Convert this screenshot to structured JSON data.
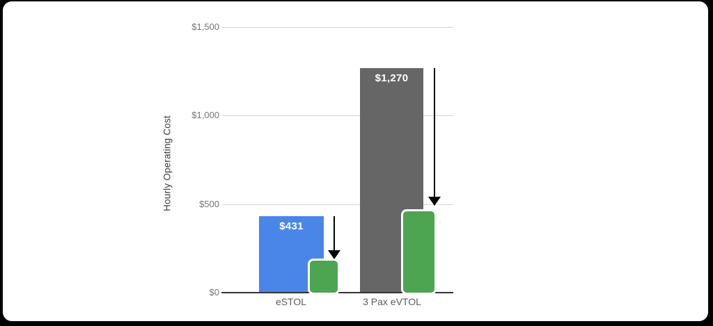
{
  "page": {
    "background_color": "#000000",
    "card_color": "#ffffff"
  },
  "chart_data": {
    "type": "bar",
    "title": "",
    "xlabel": "",
    "ylabel": "Hourly Operating Cost",
    "categories": [
      "eSTOL",
      "3 Pax eVTOL"
    ],
    "series": [
      {
        "name": "baseline-operating-cost",
        "values": [
          431,
          1270
        ],
        "data_labels": [
          "$431",
          "$1,270"
        ],
        "bar_colors": [
          "#4a86e8",
          "#666666"
        ],
        "label_color": "#ffffff"
      },
      {
        "name": "reduced-operating-cost",
        "values": [
          180,
          460
        ],
        "data_labels": [
          "",
          ""
        ],
        "bar_colors": [
          "#4da451",
          "#4da451"
        ]
      }
    ],
    "annotations": [
      {
        "type": "down-arrow",
        "category": "eSTOL",
        "from_value": 431,
        "to_value": 180
      },
      {
        "type": "down-arrow",
        "category": "3 Pax eVTOL",
        "from_value": 1270,
        "to_value": 460
      }
    ],
    "ylim": [
      0,
      1500
    ],
    "yticks": [
      {
        "value": 0,
        "label": "$0"
      },
      {
        "value": 500,
        "label": "$500"
      },
      {
        "value": 1000,
        "label": "$1,000"
      },
      {
        "value": 1500,
        "label": "$1,500"
      }
    ],
    "grid": true,
    "legend": "none",
    "colors": {
      "gridline": "#d2d2d2",
      "axis_line": "#333333",
      "tick_text": "#757575",
      "category_text": "#5c5c5c",
      "ylabel_text": "#3c3c3c",
      "arrow": "#000000",
      "overlay_outline": "#ffffff"
    }
  }
}
